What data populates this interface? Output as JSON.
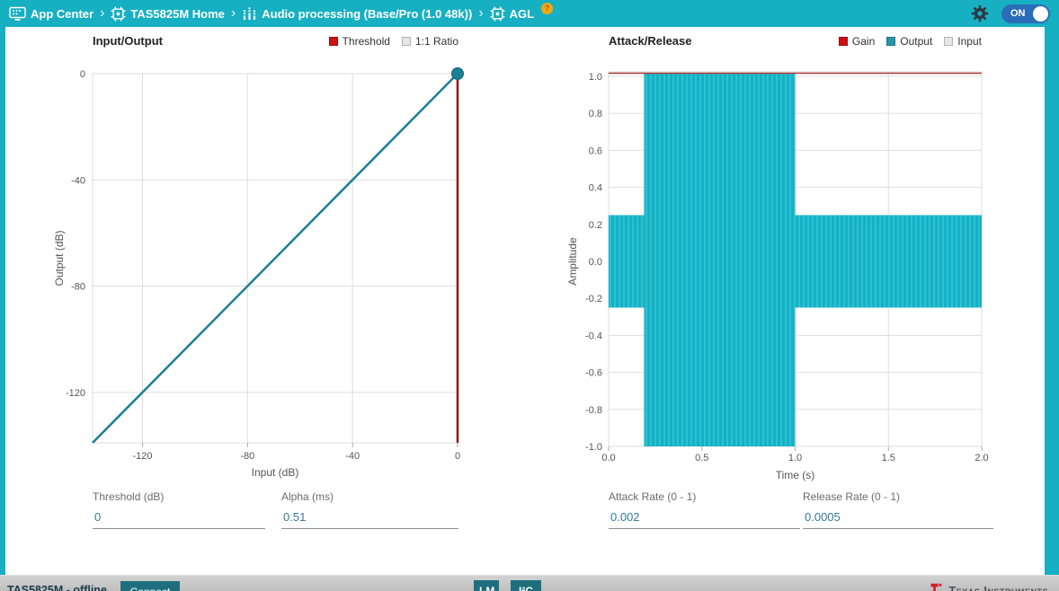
{
  "topbar": {
    "separator": "›",
    "breadcrumb": [
      {
        "label": "App Center",
        "icon": "app-center-icon"
      },
      {
        "label": "TAS5825M Home",
        "icon": "chip-icon"
      },
      {
        "label": "Audio processing (Base/Pro (1.0 48k))",
        "icon": "equalizer-icon"
      },
      {
        "label": "AGL",
        "icon": "chip-icon",
        "help_badge": "?"
      }
    ],
    "toggle": {
      "label": "ON",
      "state": "on"
    }
  },
  "io_panel": {
    "title": "Input/Output",
    "legend": [
      {
        "label": "Threshold",
        "color": "#cc1111"
      },
      {
        "label": "1:1 Ratio",
        "color": "#e6e6e6"
      }
    ],
    "fields": [
      {
        "label": "Threshold (dB)",
        "value": "0"
      },
      {
        "label": "Alpha (ms)",
        "value": "0.51"
      }
    ]
  },
  "ar_panel": {
    "title": "Attack/Release",
    "legend": [
      {
        "label": "Gain",
        "color": "#cc1111"
      },
      {
        "label": "Output",
        "color": "#2596aa"
      },
      {
        "label": "Input",
        "color": "#e6e6e6"
      }
    ],
    "fields": [
      {
        "label": "Attack Rate (0 - 1)",
        "value": "0.002"
      },
      {
        "label": "Release Rate (0 - 1)",
        "value": "0.0005"
      }
    ]
  },
  "footer": {
    "device_status": "TAS5825M - offline",
    "connect_label": "Connect",
    "lm_label": "LM",
    "i2c_label": "I²C",
    "brand": "Texas Instruments"
  },
  "chart_data": [
    {
      "type": "line",
      "title": "Input/Output",
      "xlabel": "Input (dB)",
      "ylabel": "Output (dB)",
      "xlim": [
        -139,
        0
      ],
      "ylim": [
        -139,
        0
      ],
      "xticks": [
        "-120",
        "-80",
        "-40",
        "0"
      ],
      "yticks": [
        "0",
        "-40",
        "-80",
        "-120"
      ],
      "grid": true,
      "series": [
        {
          "name": "1:1 Ratio",
          "color": "#dcdcdc",
          "width": 2,
          "points": [
            [
              -139,
              -139
            ],
            [
              0,
              0
            ]
          ]
        },
        {
          "name": "Output",
          "color": "#1c7f95",
          "width": 2.5,
          "points": [
            [
              -139,
              -139
            ],
            [
              0,
              0
            ]
          ],
          "end_marker": true
        },
        {
          "name": "Threshold",
          "color": "#8c1515",
          "width": 2.5,
          "points": [
            [
              0,
              0
            ],
            [
              0,
              -139
            ]
          ]
        }
      ]
    },
    {
      "type": "area",
      "title": "Attack/Release",
      "xlabel": "Time (s)",
      "ylabel": "Amplitude",
      "xlim": [
        0,
        2
      ],
      "ylim": [
        -1,
        1
      ],
      "xticks": [
        "0.0",
        "0.5",
        "1.0",
        "1.5",
        "2.0"
      ],
      "yticks": [
        "1.0",
        "0.8",
        "0.6",
        "0.4",
        "0.2",
        "0.0",
        "-0.2",
        "-0.4",
        "-0.6",
        "-0.8",
        "-1.0"
      ],
      "grid": true,
      "output_envelope": [
        {
          "t0": 0,
          "t1": 0.19,
          "amplitude": 0.25
        },
        {
          "t0": 0.19,
          "t1": 1.0,
          "amplitude": 1.0
        },
        {
          "t0": 1.0,
          "t1": 2.0,
          "amplitude": 0.25
        }
      ],
      "gain_line": {
        "value": 1.0,
        "color": "#b03a36"
      },
      "colors": {
        "output_fill": "#13b2c6",
        "output_fill_stripe": "#2fc0d0"
      }
    }
  ]
}
